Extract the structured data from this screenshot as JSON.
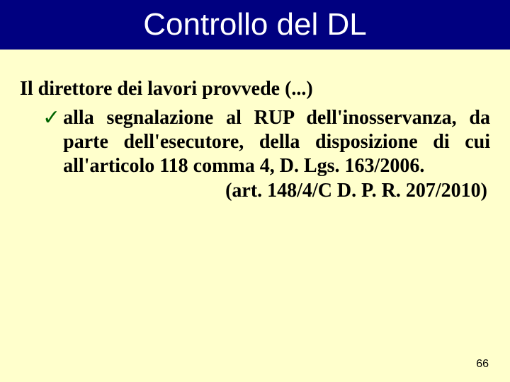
{
  "colors": {
    "slide_background": "#ffffcc",
    "title_bar_background": "#000080",
    "title_text": "#ffffff",
    "body_text": "#000000",
    "check_mark": "#006400"
  },
  "typography": {
    "title_font": "Verdana",
    "title_size_pt": 44,
    "body_font": "Times New Roman",
    "body_size_pt": 28,
    "body_weight": "bold",
    "page_number_font": "Arial",
    "page_number_size_pt": 16
  },
  "title": "Controllo del DL",
  "intro": "Il direttore dei lavori provvede (...)",
  "bullet": {
    "marker": "✓",
    "text": "alla segnalazione al RUP dell'inosservanza, da parte dell'esecutore, della disposizione di cui all'articolo 118 comma 4, D. Lgs. 163/2006."
  },
  "citation": "(art. 148/4/C D. P. R. 207/2010)",
  "page_number": "66"
}
